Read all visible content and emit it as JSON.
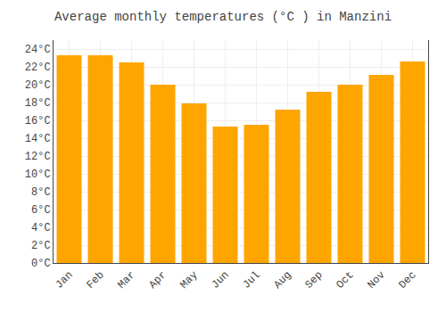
{
  "chart_data": {
    "type": "bar",
    "title": "Average monthly temperatures (°C ) in Manzini",
    "categories": [
      "Jan",
      "Feb",
      "Mar",
      "Apr",
      "May",
      "Jun",
      "Jul",
      "Aug",
      "Sep",
      "Oct",
      "Nov",
      "Dec"
    ],
    "values": [
      23.3,
      23.3,
      22.5,
      20.0,
      17.9,
      15.3,
      15.5,
      17.2,
      19.2,
      20.0,
      21.1,
      22.6
    ],
    "color": "#FFA500",
    "ylim": [
      0,
      25
    ],
    "yticks": [
      {
        "value": 0,
        "label": "0°C"
      },
      {
        "value": 2,
        "label": "2°C"
      },
      {
        "value": 4,
        "label": "4°C"
      },
      {
        "value": 6,
        "label": "6°C"
      },
      {
        "value": 8,
        "label": "8°C"
      },
      {
        "value": 10,
        "label": "10°C"
      },
      {
        "value": 12,
        "label": "12°C"
      },
      {
        "value": 14,
        "label": "14°C"
      },
      {
        "value": 16,
        "label": "16°C"
      },
      {
        "value": 18,
        "label": "18°C"
      },
      {
        "value": 20,
        "label": "20°C"
      },
      {
        "value": 22,
        "label": "22°C"
      },
      {
        "value": 24,
        "label": "24°C"
      }
    ],
    "grid": true
  }
}
